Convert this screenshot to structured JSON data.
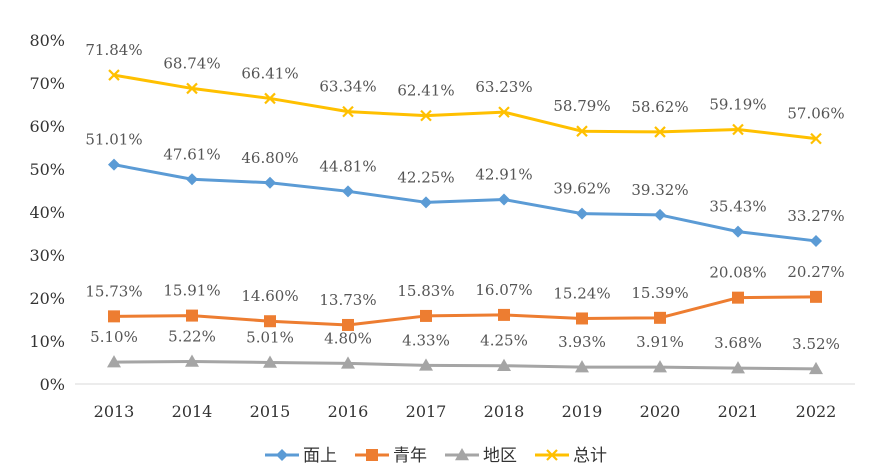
{
  "chart_data": {
    "type": "line",
    "title": "",
    "xlabel": "",
    "ylabel": "",
    "categories": [
      "2013",
      "2014",
      "2015",
      "2016",
      "2017",
      "2018",
      "2019",
      "2020",
      "2021",
      "2022"
    ],
    "ylim": [
      0,
      80
    ],
    "yticks": [
      0,
      10,
      20,
      30,
      40,
      50,
      60,
      70,
      80
    ],
    "ytick_labels": [
      "0%",
      "10%",
      "20%",
      "30%",
      "40%",
      "50%",
      "60%",
      "70%",
      "80%"
    ],
    "grid": false,
    "legend_position": "bottom",
    "series": [
      {
        "name": "面上",
        "color": "#5b9bd5",
        "marker": "diamond",
        "values": [
          51.01,
          47.61,
          46.8,
          44.81,
          42.25,
          42.91,
          39.62,
          39.32,
          35.43,
          33.27
        ],
        "labels": [
          "51.01%",
          "47.61%",
          "46.80%",
          "44.81%",
          "42.25%",
          "42.91%",
          "39.62%",
          "39.32%",
          "35.43%",
          "33.27%"
        ]
      },
      {
        "name": "青年",
        "color": "#ed7d31",
        "marker": "square",
        "values": [
          15.73,
          15.91,
          14.6,
          13.73,
          15.83,
          16.07,
          15.24,
          15.39,
          20.08,
          20.27
        ],
        "labels": [
          "15.73%",
          "15.91%",
          "14.60%",
          "13.73%",
          "15.83%",
          "16.07%",
          "15.24%",
          "15.39%",
          "20.08%",
          "20.27%"
        ]
      },
      {
        "name": "地区",
        "color": "#a5a5a5",
        "marker": "triangle",
        "values": [
          5.1,
          5.22,
          5.01,
          4.8,
          4.33,
          4.25,
          3.93,
          3.91,
          3.68,
          3.52
        ],
        "labels": [
          "5.10%",
          "5.22%",
          "5.01%",
          "4.80%",
          "4.33%",
          "4.25%",
          "3.93%",
          "3.91%",
          "3.68%",
          "3.52%"
        ]
      },
      {
        "name": "总计",
        "color": "#ffc000",
        "marker": "x",
        "values": [
          71.84,
          68.74,
          66.41,
          63.34,
          62.41,
          63.23,
          58.79,
          58.62,
          59.19,
          57.06
        ],
        "labels": [
          "71.84%",
          "68.74%",
          "66.41%",
          "63.34%",
          "62.41%",
          "63.23%",
          "58.79%",
          "58.62%",
          "59.19%",
          "57.06%"
        ]
      }
    ]
  }
}
